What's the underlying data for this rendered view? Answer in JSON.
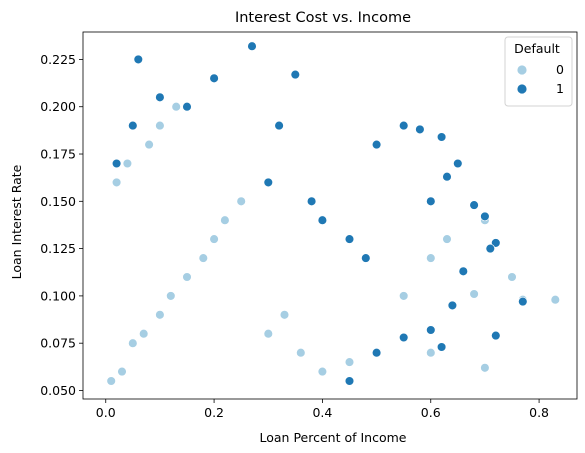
{
  "chart_data": {
    "type": "scatter",
    "title": "Interest Cost vs. Income",
    "xlabel": "Loan Percent of Income",
    "ylabel": "Loan Interest Rate",
    "xlim": [
      -0.042,
      0.87
    ],
    "ylim": [
      0.0455,
      0.2395
    ],
    "xticks": [
      0.0,
      0.2,
      0.4,
      0.6,
      0.8
    ],
    "xtick_labels": [
      "0.0",
      "0.2",
      "0.4",
      "0.6",
      "0.8"
    ],
    "yticks": [
      0.05,
      0.075,
      0.1,
      0.125,
      0.15,
      0.175,
      0.2,
      0.225
    ],
    "ytick_labels": [
      "0.050",
      "0.075",
      "0.100",
      "0.125",
      "0.150",
      "0.175",
      "0.200",
      "0.225"
    ],
    "grid": false,
    "legend": {
      "title": "Default",
      "placement": "top-right",
      "entries": [
        {
          "label": "0",
          "color": "#a6cee3"
        },
        {
          "label": "1",
          "color": "#1f78b4"
        }
      ]
    },
    "series": [
      {
        "name": "0",
        "color": "#a6cee3",
        "points": [
          [
            0.01,
            0.055
          ],
          [
            0.03,
            0.06
          ],
          [
            0.05,
            0.075
          ],
          [
            0.07,
            0.08
          ],
          [
            0.1,
            0.09
          ],
          [
            0.12,
            0.1
          ],
          [
            0.15,
            0.11
          ],
          [
            0.18,
            0.12
          ],
          [
            0.2,
            0.13
          ],
          [
            0.22,
            0.14
          ],
          [
            0.25,
            0.15
          ],
          [
            0.02,
            0.16
          ],
          [
            0.04,
            0.17
          ],
          [
            0.08,
            0.18
          ],
          [
            0.1,
            0.19
          ],
          [
            0.13,
            0.2
          ],
          [
            0.3,
            0.08
          ],
          [
            0.33,
            0.09
          ],
          [
            0.36,
            0.07
          ],
          [
            0.4,
            0.06
          ],
          [
            0.45,
            0.065
          ],
          [
            0.5,
            0.07
          ],
          [
            0.55,
            0.1
          ],
          [
            0.6,
            0.12
          ],
          [
            0.63,
            0.13
          ],
          [
            0.7,
            0.14
          ],
          [
            0.75,
            0.11
          ],
          [
            0.77,
            0.098
          ],
          [
            0.83,
            0.098
          ],
          [
            0.7,
            0.062
          ],
          [
            0.68,
            0.101
          ],
          [
            0.6,
            0.07
          ]
        ]
      },
      {
        "name": "1",
        "color": "#1f78b4",
        "points": [
          [
            0.02,
            0.17
          ],
          [
            0.05,
            0.19
          ],
          [
            0.06,
            0.225
          ],
          [
            0.1,
            0.205
          ],
          [
            0.15,
            0.2
          ],
          [
            0.2,
            0.215
          ],
          [
            0.27,
            0.232
          ],
          [
            0.32,
            0.19
          ],
          [
            0.35,
            0.217
          ],
          [
            0.3,
            0.16
          ],
          [
            0.38,
            0.15
          ],
          [
            0.4,
            0.14
          ],
          [
            0.45,
            0.13
          ],
          [
            0.48,
            0.12
          ],
          [
            0.5,
            0.18
          ],
          [
            0.55,
            0.19
          ],
          [
            0.58,
            0.188
          ],
          [
            0.62,
            0.184
          ],
          [
            0.65,
            0.17
          ],
          [
            0.63,
            0.163
          ],
          [
            0.6,
            0.15
          ],
          [
            0.68,
            0.148
          ],
          [
            0.7,
            0.142
          ],
          [
            0.72,
            0.128
          ],
          [
            0.71,
            0.125
          ],
          [
            0.66,
            0.113
          ],
          [
            0.64,
            0.095
          ],
          [
            0.6,
            0.082
          ],
          [
            0.62,
            0.073
          ],
          [
            0.72,
            0.079
          ],
          [
            0.77,
            0.097
          ],
          [
            0.55,
            0.078
          ],
          [
            0.5,
            0.07
          ],
          [
            0.45,
            0.055
          ]
        ]
      }
    ]
  }
}
